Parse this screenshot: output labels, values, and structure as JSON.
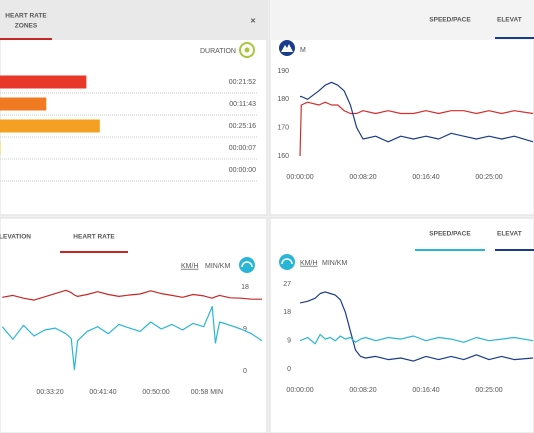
{
  "chart_data": [
    {
      "type": "bar",
      "tab": [
        "HEART RATE",
        "ZONES"
      ],
      "close": "✕",
      "sort_label": "DURATION",
      "values": [
        21.8667,
        11.7167,
        25.2667,
        0.1167,
        0
      ],
      "value_labels": [
        "00:21:52",
        "00:11:43",
        "00:25:16",
        "00:00:07",
        "00:00:00"
      ],
      "colors": [
        "#e8382a",
        "#ef7a22",
        "#f4a023",
        "#f4c023",
        "#f4d023"
      ]
    },
    {
      "type": "line",
      "tabs": [
        "SPEED/PACE",
        "ELEVAT"
      ],
      "tab_underlines": [
        null,
        "#1b3c8c"
      ],
      "units": [
        "M"
      ],
      "x": [
        0,
        10,
        60,
        150,
        200,
        250,
        300,
        350,
        400,
        450,
        500,
        600,
        700,
        800,
        900,
        1000,
        1100,
        1200,
        1300,
        1400,
        1500,
        1600,
        1700,
        1850
      ],
      "series": [
        {
          "color": "#d32f2f",
          "values": [
            160,
            178,
            179,
            178,
            179,
            178,
            178,
            176,
            175,
            175,
            176,
            175,
            176,
            175,
            175,
            176,
            175,
            176,
            176,
            175,
            176,
            175,
            176,
            175
          ]
        },
        {
          "color": "#1b3c8c",
          "values": [
            181,
            181,
            180,
            183,
            185,
            186,
            185,
            183,
            178,
            170,
            166,
            167,
            165,
            167,
            166,
            167,
            166,
            168,
            167,
            166,
            167,
            166,
            167,
            165
          ]
        }
      ],
      "xlim": [
        -48,
        1857
      ],
      "ylim": [
        157,
        193
      ],
      "xticks": [
        {
          "value": 0,
          "label": "00:00:00"
        },
        {
          "value": 500,
          "label": "00:08:20"
        },
        {
          "value": 1000,
          "label": "00:16:40"
        },
        {
          "value": 1500,
          "label": "00:25:00"
        }
      ],
      "yticks": [
        160,
        170,
        180,
        190
      ]
    },
    {
      "type": "line",
      "tabs": [
        "LEVATION",
        "HEART RATE"
      ],
      "tab_underlines": [
        null,
        "#c62828"
      ],
      "units": [
        "KM/H",
        "MIN/KM"
      ],
      "x": [
        1550,
        1650,
        1750,
        1850,
        1950,
        2050,
        2150,
        2200,
        2230,
        2260,
        2350,
        2450,
        2550,
        2650,
        2750,
        2850,
        2950,
        3050,
        3150,
        3250,
        3350,
        3450,
        3530,
        3560,
        3600,
        3700,
        3800,
        3900,
        4000
      ],
      "series": [
        {
          "color": "#c62828",
          "values": [
            15.8,
            16.2,
            15.6,
            15.2,
            15.9,
            16.6,
            17.3,
            16.8,
            16.3,
            16.0,
            16.4,
            17.0,
            16.4,
            16.0,
            16.3,
            16.5,
            17.2,
            16.6,
            16.2,
            15.8,
            16.4,
            16.1,
            15.6,
            15.9,
            16.2,
            15.7,
            15.6,
            15.4,
            15.4
          ]
        },
        {
          "color": "#29b6d6",
          "values": [
            9.5,
            6.8,
            9.8,
            7.5,
            8.8,
            9.2,
            8.0,
            7.0,
            0.3,
            6.5,
            8.5,
            9.5,
            8.0,
            10.0,
            9.2,
            8.5,
            10.5,
            9.0,
            10.0,
            8.8,
            10.2,
            9.5,
            13.8,
            6.0,
            10.5,
            9.8,
            9.0,
            8.0,
            6.5
          ]
        }
      ],
      "xlim": [
        1528,
        4047
      ],
      "ylim": [
        -1,
        20
      ],
      "xticks": [
        {
          "value": 2000,
          "label": "00:33:20"
        },
        {
          "value": 2500,
          "label": "00:41:40"
        },
        {
          "value": 3000,
          "label": "00:50:00"
        },
        {
          "value": 3480,
          "label": "00:58 MIN"
        }
      ],
      "yticks": [
        0,
        9,
        18
      ]
    },
    {
      "type": "line",
      "tabs": [
        "SPEED/PACE",
        "ELEVAT"
      ],
      "tab_underlines": [
        "#29b6d6",
        "#1b3c8c"
      ],
      "units": [
        "KM/H",
        "MIN/KM"
      ],
      "x": [
        0,
        60,
        120,
        160,
        200,
        240,
        280,
        320,
        360,
        400,
        440,
        480,
        520,
        600,
        700,
        800,
        900,
        1000,
        1100,
        1200,
        1300,
        1400,
        1500,
        1600,
        1700,
        1850
      ],
      "series": [
        {
          "color": "#1b3c8c",
          "values": [
            21,
            21.5,
            22.5,
            24,
            24.5,
            24,
            23.5,
            22,
            18,
            12,
            6,
            4,
            3.5,
            4,
            3,
            3.5,
            2.5,
            4,
            3,
            4,
            3,
            4.5,
            3,
            4,
            3,
            3.5
          ]
        },
        {
          "color": "#29b6d6",
          "values": [
            9,
            10,
            8,
            11,
            9.5,
            10,
            9,
            10.5,
            9.5,
            10,
            8.5,
            9.5,
            10,
            9,
            10,
            9.5,
            10.5,
            9,
            10,
            9.5,
            8.5,
            10,
            9,
            9.5,
            10,
            9
          ]
        }
      ],
      "xlim": [
        -48,
        1857
      ],
      "ylim": [
        -2,
        30
      ],
      "xticks": [
        {
          "value": 0,
          "label": "00:00:00"
        },
        {
          "value": 500,
          "label": "00:08:20"
        },
        {
          "value": 1000,
          "label": "00:16:40"
        },
        {
          "value": 1500,
          "label": "00:25:00"
        }
      ],
      "yticks": [
        0,
        9,
        18,
        27
      ]
    }
  ]
}
